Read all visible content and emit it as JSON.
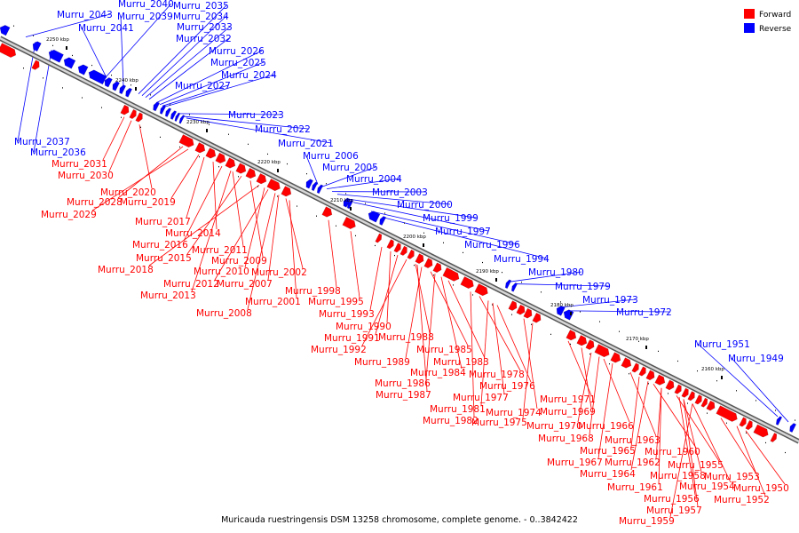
{
  "caption": "Muricauda ruestringensis DSM 13258 chromosome, complete genome. - 0..3842422",
  "legend": [
    {
      "label": "Forward",
      "color": "#ff0000"
    },
    {
      "label": "Reverse",
      "color": "#0000ff"
    }
  ],
  "colors": {
    "forward": "#ff0000",
    "reverse": "#0000ff",
    "backbone": "#999999"
  },
  "scale_labels": [
    "2250 kbp",
    "2240 kbp",
    "2230 kbp",
    "2220 kbp",
    "2210 kbp",
    "2200 kbp",
    "2190 kbp",
    "2180 kbp",
    "2170 kbp",
    "2160 kbp"
  ],
  "reverse_labels": [
    "Murru_2043",
    "Murru_2040",
    "Murru_2039",
    "Murru_2041",
    "Murru_2035",
    "Murru_2034",
    "Murru_2033",
    "Murru_2032",
    "Murru_2026",
    "Murru_2025",
    "Murru_2024",
    "Murru_2027",
    "Murru_2023",
    "Murru_2022",
    "Murru_2021",
    "Murru_2037",
    "Murru_2036",
    "Murru_2006",
    "Murru_2005",
    "Murru_2004",
    "Murru_2003",
    "Murru_2000",
    "Murru_1999",
    "Murru_1997",
    "Murru_1996",
    "Murru_1994",
    "Murru_1980",
    "Murru_1979",
    "Murru_1973",
    "Murru_1972",
    "Murru_1951",
    "Murru_1949"
  ],
  "forward_labels": [
    "Murru_2031",
    "Murru_2030",
    "Murru_2020",
    "Murru_2028",
    "Murru_2019",
    "Murru_2029",
    "Murru_2017",
    "Murru_2014",
    "Murru_2016",
    "Murru_2011",
    "Murru_2015",
    "Murru_2009",
    "Murru_2018",
    "Murru_2010",
    "Murru_2002",
    "Murru_2012",
    "Murru_2007",
    "Murru_2013",
    "Murru_2001",
    "Murru_2008",
    "Murru_1998",
    "Murru_1995",
    "Murru_1993",
    "Murru_1990",
    "Murru_1991",
    "Murru_1988",
    "Murru_1992",
    "Murru_1985",
    "Murru_1989",
    "Murru_1983",
    "Murru_1984",
    "Murru_1978",
    "Murru_1986",
    "Murru_1976",
    "Murru_1977",
    "Murru_1987",
    "Murru_1981",
    "Murru_1974",
    "Murru_1982",
    "Murru_1975",
    "Murru_1971",
    "Murru_1969",
    "Murru_1970",
    "Murru_1966",
    "Murru_1968",
    "Murru_1963",
    "Murru_1965",
    "Murru_1960",
    "Murru_1967",
    "Murru_1962",
    "Murru_1955",
    "Murru_1958",
    "Murru_1964",
    "Murru_1954",
    "Murru_1953",
    "Murru_1961",
    "Murru_1956",
    "Murru_1950",
    "Murru_1952",
    "Murru_1957",
    "Murru_1959"
  ]
}
